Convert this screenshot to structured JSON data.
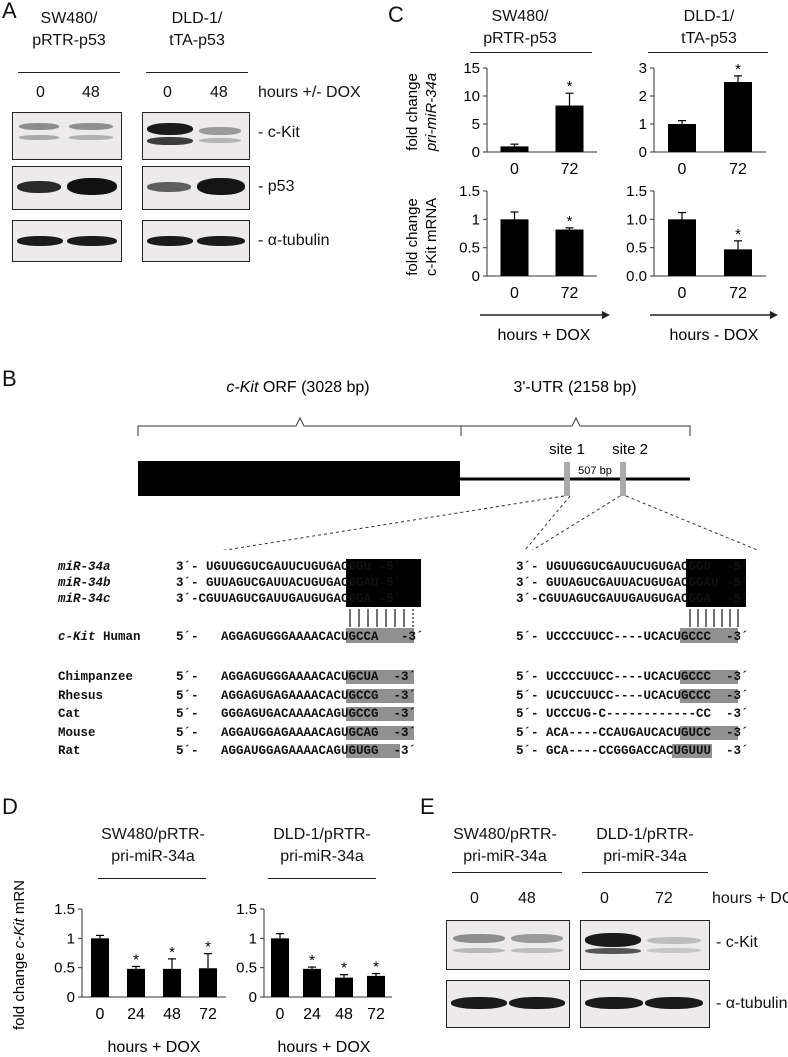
{
  "panels": {
    "A": "A",
    "B": "B",
    "C": "C",
    "D": "D",
    "E": "E"
  },
  "panelA": {
    "col1_l1": "SW480/",
    "col1_l2": "pRTR-p53",
    "col2_l1": "DLD-1/",
    "col2_l2": "tTA-p53",
    "ticks": [
      "0",
      "48",
      "0",
      "48"
    ],
    "hours_label": "hours +/- DOX",
    "rows": [
      "- c-Kit",
      "- p53",
      "- α-tubulin"
    ]
  },
  "panelC": {
    "h1_l1": "SW480/",
    "h1_l2": "pRTR-p53",
    "h2_l1": "DLD-1/",
    "h2_l2": "tTA-p53",
    "ylabel_top_1": "fold change",
    "ylabel_top_2": "pri-miR-34a",
    "ylabel_bot_1": "fold change",
    "ylabel_bot_2": "c-Kit mRNA",
    "xfoot_left": "hours + DOX",
    "xfoot_right": "hours - DOX"
  },
  "panelB": {
    "orf_label_it": "c-Kit",
    "orf_label_rest": " ORF (3028 bp)",
    "utr_label": "3'-UTR (2158 bp)",
    "site1": "site 1",
    "site2": "site 2",
    "gap": "507 bp",
    "mirna_names": [
      "miR-34a",
      "miR-34b",
      "miR-34c"
    ],
    "ckit_label_it": "c-Kit",
    "ckit_label_rest": " Human",
    "species": [
      "Chimpanzee",
      "Rhesus",
      "Cat",
      "Mouse",
      "Rat"
    ],
    "left": {
      "mir": [
        "3´- UGUUGGUCGAUUCUGUGACGGU -5´",
        "3´- GUUAGUCGAUUACUGUGACGGAU-5´",
        "3´-CGUUAGUCGAUUGAUGUGACGGA -5´"
      ],
      "human": "5´-   AGGAGUGGGAAAACACUGCCA   -3´",
      "sp": [
        "5´-   AGGAGUGGGAAAACACUGCUA  -3´",
        "5´-   AGGAGUGAGAAAACACUGCCG  -3´",
        "5´-   GGGAGUGACAAAACAGUGCCG  -3´",
        "5´-   AGGAUGGAGAAAACAGUGCAG  -3´",
        "5´-   AGGAUGGAGAAAACAGUGUGG  -3´"
      ]
    },
    "right": {
      "mir": [
        "3´- UGUUGGUCGAUUCUGUGACGGU  -5´",
        "3´- GUUAGUCGAUUACUGUGACGGAU -5´",
        "3´-CGUUAGUCGAUUGAUGUGACGGA  -5´"
      ],
      "human": "5´- UCCCCUUCC----UCACUGCCC  -3´",
      "sp": [
        "5´- UCCCCUUCC----UCACUGCCC  -3´",
        "5´- UCUCCUUCC----UCACUGCCC  -3´",
        "5´- UCCCUG-C------------CC  -3´",
        "5´- ACA----CCAUGAUCACUGUCC  -3´",
        "5´- GCA----CCGGGACCACUGUUU  -3´"
      ]
    }
  },
  "panelD": {
    "t1_l1": "SW480/pRTR-",
    "t1_l2": "pri-miR-34a",
    "t2_l1": "DLD-1/pRTR-",
    "t2_l2": "pri-miR-34a",
    "ylabel_1": "fold change ",
    "ylabel_it": "c-Kit",
    "ylabel_2": " mRNA",
    "xfoot": "hours + DOX"
  },
  "panelE": {
    "t1_l1": "SW480/pRTR-",
    "t1_l2": "pri-miR-34a",
    "t2_l1": "DLD-1/pRTR-",
    "t2_l2": "pri-miR-34a",
    "ticks": [
      "0",
      "48",
      "0",
      "72"
    ],
    "hours_label": "hours + DOX",
    "rows": [
      "- c-Kit",
      "- α-tubulin"
    ]
  },
  "chart_data": [
    {
      "type": "bar",
      "panel": "C-top-left",
      "categories": [
        "0",
        "72"
      ],
      "values": [
        1,
        8.3
      ],
      "errors": [
        0.4,
        2.2
      ],
      "ylim": [
        0,
        15
      ],
      "yticks": [
        "0",
        "5",
        "10",
        "15"
      ],
      "significant": [
        false,
        true
      ]
    },
    {
      "type": "bar",
      "panel": "C-top-right",
      "categories": [
        "0",
        "72"
      ],
      "values": [
        1,
        2.5
      ],
      "errors": [
        0.12,
        0.22
      ],
      "ylim": [
        0,
        3
      ],
      "yticks": [
        "0",
        "1",
        "2",
        "3"
      ],
      "significant": [
        false,
        true
      ]
    },
    {
      "type": "bar",
      "panel": "C-bottom-left",
      "categories": [
        "0",
        "72"
      ],
      "values": [
        1,
        0.82
      ],
      "errors": [
        0.13,
        0.03
      ],
      "ylim": [
        0,
        1.5
      ],
      "yticks": [
        "0",
        "0.5",
        "1",
        "1.5"
      ],
      "significant": [
        false,
        true
      ]
    },
    {
      "type": "bar",
      "panel": "C-bottom-right",
      "categories": [
        "0",
        "72"
      ],
      "values": [
        1,
        0.47
      ],
      "errors": [
        0.12,
        0.15
      ],
      "ylim": [
        0,
        1.5
      ],
      "yticks": [
        "0.0",
        "0.5",
        "1.0",
        "1.5"
      ],
      "significant": [
        false,
        true
      ]
    },
    {
      "type": "bar",
      "panel": "D-left",
      "categories": [
        "0",
        "24",
        "48",
        "72"
      ],
      "values": [
        1,
        0.48,
        0.48,
        0.49
      ],
      "errors": [
        0.05,
        0.04,
        0.17,
        0.25
      ],
      "ylim": [
        0,
        1.5
      ],
      "yticks": [
        "0",
        "0.5",
        "1",
        "1.5"
      ],
      "significant": [
        false,
        true,
        true,
        true
      ]
    },
    {
      "type": "bar",
      "panel": "D-right",
      "categories": [
        "0",
        "24",
        "48",
        "72"
      ],
      "values": [
        1,
        0.48,
        0.33,
        0.36
      ],
      "errors": [
        0.08,
        0.03,
        0.05,
        0.04
      ],
      "ylim": [
        0,
        1.5
      ],
      "yticks": [
        "0",
        "0.5",
        "1",
        "1.5"
      ],
      "significant": [
        false,
        true,
        true,
        true
      ]
    }
  ]
}
